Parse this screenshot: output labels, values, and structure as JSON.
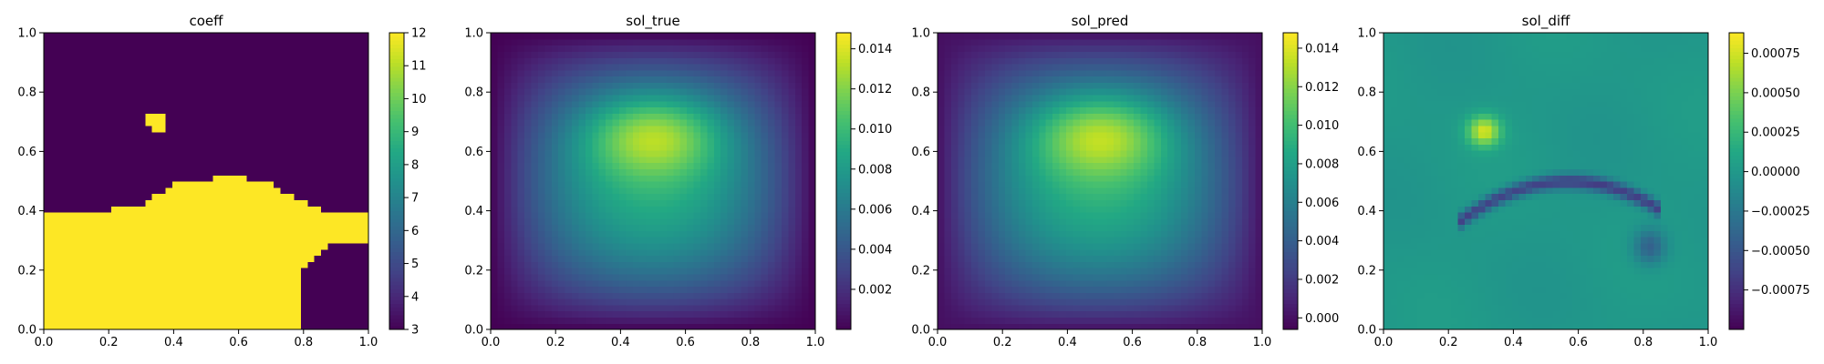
{
  "chart_data": [
    {
      "type": "heatmap",
      "title": "coeff",
      "field": "coeff",
      "xlim": [
        0,
        1
      ],
      "ylim": [
        0,
        1
      ],
      "xticks": [
        "0.0",
        "0.2",
        "0.4",
        "0.6",
        "0.8",
        "1.0"
      ],
      "yticks": [
        "0.0",
        "0.2",
        "0.4",
        "0.6",
        "0.8",
        "1.0"
      ],
      "colorbar": {
        "min": 3,
        "max": 12,
        "ticks": [
          3,
          4,
          5,
          6,
          7,
          8,
          9,
          10,
          11,
          12
        ]
      }
    },
    {
      "type": "heatmap",
      "title": "sol_true",
      "field": "sol_true",
      "xlim": [
        0,
        1
      ],
      "ylim": [
        0,
        1
      ],
      "xticks": [
        "0.0",
        "0.2",
        "0.4",
        "0.6",
        "0.8",
        "1.0"
      ],
      "yticks": [
        "0.0",
        "0.2",
        "0.4",
        "0.6",
        "0.8",
        "1.0"
      ],
      "colorbar": {
        "min": 0.0,
        "max": 0.0148,
        "ticks": [
          0.002,
          0.004,
          0.006,
          0.008,
          0.01,
          0.012,
          0.014
        ],
        "ticklabels": [
          "0.002",
          "0.004",
          "0.006",
          "0.008",
          "0.010",
          "0.012",
          "0.014"
        ]
      }
    },
    {
      "type": "heatmap",
      "title": "sol_pred",
      "field": "sol_pred",
      "xlim": [
        0,
        1
      ],
      "ylim": [
        0,
        1
      ],
      "xticks": [
        "0.0",
        "0.2",
        "0.4",
        "0.6",
        "0.8",
        "1.0"
      ],
      "yticks": [
        "0.0",
        "0.2",
        "0.4",
        "0.6",
        "0.8",
        "1.0"
      ],
      "colorbar": {
        "min": -0.0006,
        "max": 0.0148,
        "ticks": [
          0.0,
          0.002,
          0.004,
          0.006,
          0.008,
          0.01,
          0.012,
          0.014
        ],
        "ticklabels": [
          "0.000",
          "0.002",
          "0.004",
          "0.006",
          "0.008",
          "0.010",
          "0.012",
          "0.014"
        ]
      }
    },
    {
      "type": "heatmap",
      "title": "sol_diff",
      "field": "sol_diff",
      "xlim": [
        0,
        1
      ],
      "ylim": [
        0,
        1
      ],
      "xticks": [
        "0.0",
        "0.2",
        "0.4",
        "0.6",
        "0.8",
        "1.0"
      ],
      "yticks": [
        "0.0",
        "0.2",
        "0.4",
        "0.6",
        "0.8",
        "1.0"
      ],
      "colorbar": {
        "min": -0.001,
        "max": 0.00088,
        "ticks": [
          -0.00075,
          -0.0005,
          -0.00025,
          0.0,
          0.00025,
          0.0005,
          0.00075
        ],
        "ticklabels": [
          "−0.00075",
          "−0.00050",
          "−0.00025",
          "0.00000",
          "0.00025",
          "0.00050",
          "0.00075"
        ]
      }
    }
  ]
}
